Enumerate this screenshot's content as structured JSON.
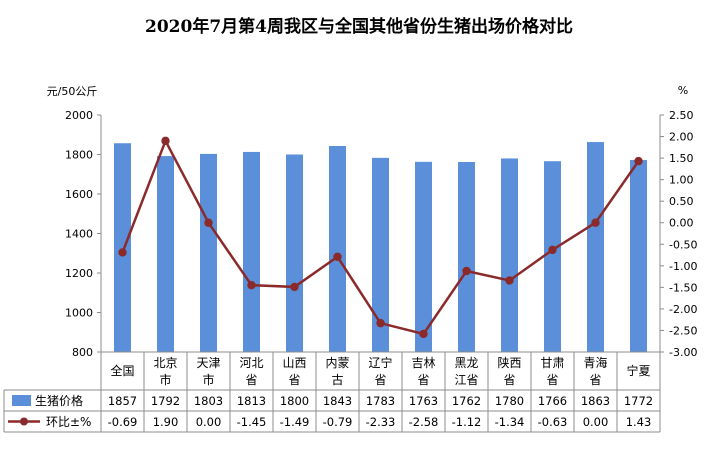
{
  "chart_data": {
    "type": "bar",
    "title": "2020年7月第4周我区与全国其他省份生猪出场价格对比",
    "y_left_unit": "元/50公斤",
    "y_right_unit": "%",
    "ylim_left": [
      800,
      2000
    ],
    "y_left_ticks": [
      "800",
      "1000",
      "1200",
      "1400",
      "1600",
      "1800",
      "2000"
    ],
    "ylim_right": [
      -3.0,
      2.5
    ],
    "y_right_ticks": [
      "-3.00",
      "-2.50",
      "-2.00",
      "-1.50",
      "-1.00",
      "-0.50",
      "0.00",
      "0.50",
      "1.00",
      "1.50",
      "2.00",
      "2.50"
    ],
    "grid": false,
    "legend": "bottom-left table",
    "categories": [
      [
        "全国"
      ],
      [
        "北京",
        "市"
      ],
      [
        "天津",
        "市"
      ],
      [
        "河北",
        "省"
      ],
      [
        "山西",
        "省"
      ],
      [
        "内蒙",
        "古"
      ],
      [
        "辽宁",
        "省"
      ],
      [
        "吉林",
        "省"
      ],
      [
        "黑龙",
        "江省"
      ],
      [
        "陕西",
        "省"
      ],
      [
        "甘肃",
        "省"
      ],
      [
        "青海",
        "省"
      ],
      [
        "宁夏"
      ]
    ],
    "series": [
      {
        "name": "生猪价格",
        "type": "bar",
        "axis": "left",
        "color": "#5b8fd9",
        "values": [
          1857,
          1792,
          1803,
          1813,
          1800,
          1843,
          1783,
          1763,
          1762,
          1780,
          1766,
          1863,
          1772
        ],
        "labels": [
          "1857",
          "1792",
          "1803",
          "1813",
          "1800",
          "1843",
          "1783",
          "1763",
          "1762",
          "1780",
          "1766",
          "1863",
          "1772"
        ]
      },
      {
        "name": "环比±%",
        "type": "line",
        "axis": "right",
        "color": "#8b2a2a",
        "values": [
          -0.69,
          1.9,
          0.0,
          -1.45,
          -1.49,
          -0.79,
          -2.33,
          -2.58,
          -1.12,
          -1.34,
          -0.63,
          0.0,
          1.43
        ],
        "labels": [
          "-0.69",
          "1.90",
          "0.00",
          "-1.45",
          "-1.49",
          "-0.79",
          "-2.33",
          "-2.58",
          "-1.12",
          "-1.34",
          "-0.63",
          "0.00",
          "1.43"
        ]
      }
    ]
  }
}
